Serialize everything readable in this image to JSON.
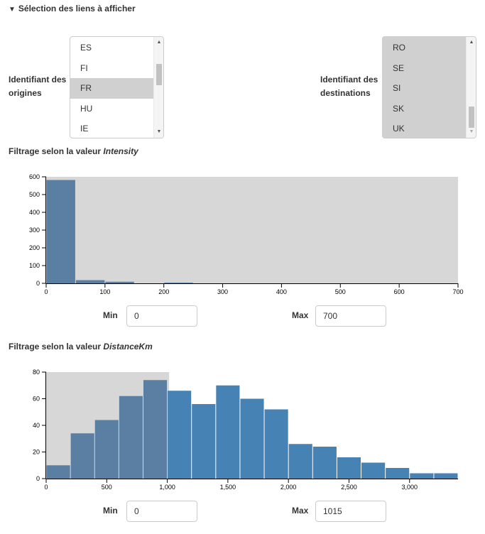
{
  "links_section": {
    "toggle_icon": "triangle-down-icon",
    "title": "Sélection des liens à afficher"
  },
  "origins": {
    "label_line1": "Identifiant des",
    "label_line2": "origines",
    "options": [
      "ES",
      "FI",
      "FR",
      "HU",
      "IE"
    ],
    "selected": "FR"
  },
  "destinations": {
    "label_line1": "Identifiant des",
    "label_line2": "destinations",
    "options": [
      "RO",
      "SE",
      "SI",
      "SK",
      "UK"
    ]
  },
  "intensity_filter": {
    "title_prefix": "Filtrage selon la valeur",
    "title_var": "Intensity",
    "min_label": "Min",
    "min_value": "0",
    "max_label": "Max",
    "max_value": "700"
  },
  "distance_filter": {
    "title_prefix": "Filtrage selon la valeur",
    "title_var": "DistanceKm",
    "min_label": "Min",
    "min_value": "0",
    "max_label": "Max",
    "max_value": "1015"
  },
  "chart_data": [
    {
      "type": "bar",
      "name": "intensity-histogram",
      "x_ticks": [
        0,
        100,
        200,
        300,
        400,
        500,
        600,
        700
      ],
      "y_ticks": [
        0,
        100,
        200,
        300,
        400,
        500,
        600
      ],
      "xlim": [
        0,
        700
      ],
      "ylim": [
        0,
        600
      ],
      "bins": [
        {
          "x0": 0,
          "x1": 50,
          "count": 582
        },
        {
          "x0": 50,
          "x1": 100,
          "count": 18
        },
        {
          "x0": 100,
          "x1": 150,
          "count": 9
        },
        {
          "x0": 150,
          "x1": 200,
          "count": 0
        },
        {
          "x0": 200,
          "x1": 250,
          "count": 4
        }
      ],
      "brush": [
        0,
        700
      ],
      "colors": {
        "bar_selected": "#5b7fa3",
        "brush_bg": "#d7d7d7"
      }
    },
    {
      "type": "bar",
      "name": "distance-histogram",
      "x_ticks": [
        0,
        500,
        1000,
        1500,
        2000,
        2500,
        3000
      ],
      "x_tick_labels": [
        "0",
        "500",
        "1,000",
        "1,500",
        "2,000",
        "2,500",
        "3,000"
      ],
      "y_ticks": [
        0,
        20,
        40,
        60,
        80
      ],
      "xlim": [
        0,
        3400
      ],
      "ylim": [
        0,
        80
      ],
      "bins": [
        {
          "x0": 0,
          "x1": 200,
          "count": 10
        },
        {
          "x0": 200,
          "x1": 400,
          "count": 34
        },
        {
          "x0": 400,
          "x1": 600,
          "count": 44
        },
        {
          "x0": 600,
          "x1": 800,
          "count": 62
        },
        {
          "x0": 800,
          "x1": 1000,
          "count": 74
        },
        {
          "x0": 1000,
          "x1": 1200,
          "count": 66
        },
        {
          "x0": 1200,
          "x1": 1400,
          "count": 56
        },
        {
          "x0": 1400,
          "x1": 1600,
          "count": 70
        },
        {
          "x0": 1600,
          "x1": 1800,
          "count": 60
        },
        {
          "x0": 1800,
          "x1": 2000,
          "count": 52
        },
        {
          "x0": 2000,
          "x1": 2200,
          "count": 26
        },
        {
          "x0": 2200,
          "x1": 2400,
          "count": 24
        },
        {
          "x0": 2400,
          "x1": 2600,
          "count": 16
        },
        {
          "x0": 2600,
          "x1": 2800,
          "count": 12
        },
        {
          "x0": 2800,
          "x1": 3000,
          "count": 8
        },
        {
          "x0": 3000,
          "x1": 3200,
          "count": 4
        },
        {
          "x0": 3200,
          "x1": 3400,
          "count": 4
        }
      ],
      "brush": [
        0,
        1015
      ],
      "colors": {
        "bar_selected": "#5b7fa3",
        "bar_unselected": "#4682b4",
        "brush_bg": "#d7d7d7"
      }
    }
  ]
}
